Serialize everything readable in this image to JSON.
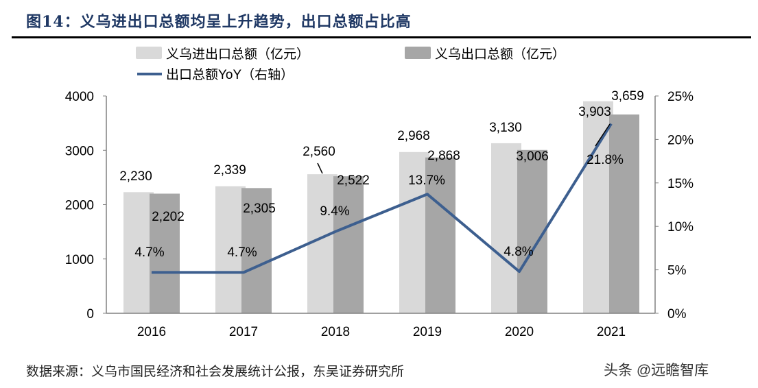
{
  "title": "图14：义乌进出口总额均呈上升趋势，出口总额占比高",
  "source": "数据来源：义乌市国民经济和社会发展统计公报，东吴证券研究所",
  "watermark": "头条 @远瞻智库",
  "chart_data": {
    "type": "bar+line",
    "categories": [
      "2016",
      "2017",
      "2018",
      "2019",
      "2020",
      "2021"
    ],
    "series": [
      {
        "name": "义乌进出口总额（亿元）",
        "type": "bar",
        "axis": "left",
        "color": "#d9d9d9",
        "values": [
          2230,
          2339,
          2560,
          2968,
          3130,
          3903
        ],
        "labels": [
          "2,230",
          "2,339",
          "2,560",
          "2,968",
          "3,130",
          "3,903"
        ]
      },
      {
        "name": "义乌出口总额（亿元）",
        "type": "bar",
        "axis": "left",
        "color": "#a6a6a6",
        "values": [
          2202,
          2305,
          2522,
          2868,
          3006,
          3659
        ],
        "labels": [
          "2,202",
          "2,305",
          "2,522",
          "2,868",
          "3,006",
          "3,659"
        ]
      },
      {
        "name": "出口总额YoY（右轴）",
        "type": "line",
        "axis": "right",
        "color": "#3d5f8f",
        "values": [
          4.7,
          4.7,
          9.4,
          13.7,
          4.8,
          21.8
        ],
        "labels": [
          "4.7%",
          "4.7%",
          "9.4%",
          "13.7%",
          "4.8%",
          "21.8%"
        ]
      }
    ],
    "y_left": {
      "range": [
        0,
        4000
      ],
      "ticks": [
        "0",
        "1000",
        "2000",
        "3000",
        "4000"
      ]
    },
    "y_right": {
      "range": [
        0,
        25
      ],
      "ticks": [
        "0%",
        "5%",
        "10%",
        "15%",
        "20%",
        "25%"
      ]
    },
    "grid": false,
    "legend": "top"
  }
}
